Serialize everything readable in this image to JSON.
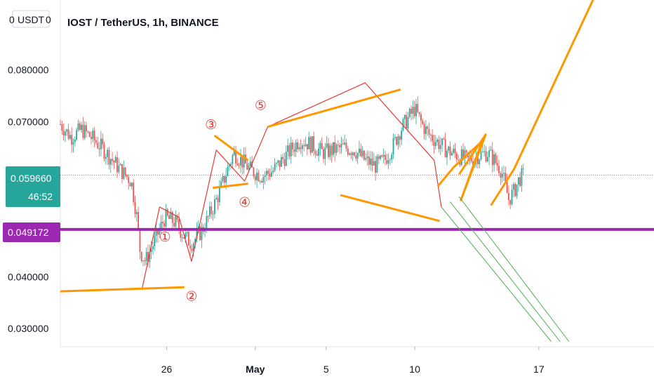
{
  "header": {
    "currency_badge": "USDT",
    "badge_left": "0",
    "badge_right": "0",
    "title": "IOST / TetherUS, 1h, BINANCE"
  },
  "colors": {
    "candle_up": "#26a69a",
    "candle_down": "#ef5350",
    "drawing_orange": "#ff9800",
    "wave_red": "#e53935",
    "support_purple": "#9c27b0",
    "price_tag_teal": "#26a69a",
    "projection_green": "#4caf50"
  },
  "price_tags": {
    "current_price": "0.059660",
    "countdown": "46:52",
    "support_price": "0.049172"
  },
  "wave_labels": [
    "①",
    "②",
    "③",
    "④",
    "⑤"
  ],
  "chart_data": {
    "type": "candlestick",
    "title": "IOST / TetherUS, 1h, BINANCE",
    "y_ticks": [
      {
        "value": 0.08,
        "label": "0.080000"
      },
      {
        "value": 0.07,
        "label": "0.070000"
      },
      {
        "value": 0.04,
        "label": "0.040000"
      },
      {
        "value": 0.03,
        "label": "0.030000"
      }
    ],
    "x_ticks": [
      {
        "day": 26,
        "label": "26"
      },
      {
        "day": 31,
        "label": "May"
      },
      {
        "day": 35,
        "label": "5"
      },
      {
        "day": 40,
        "label": "10"
      },
      {
        "day": 47,
        "label": "17"
      }
    ],
    "ylim": [
      0.0265,
      0.0935
    ],
    "xlim_days": [
      20.0,
      53.5
    ],
    "current_price": 0.05966,
    "support_level": 0.049172,
    "price_path": [
      [
        20.0,
        0.0695
      ],
      [
        20.6,
        0.067
      ],
      [
        21.2,
        0.0685
      ],
      [
        21.9,
        0.0665
      ],
      [
        22.6,
        0.064
      ],
      [
        23.3,
        0.061
      ],
      [
        24.0,
        0.0585
      ],
      [
        24.3,
        0.052
      ],
      [
        24.5,
        0.045
      ],
      [
        24.8,
        0.043
      ],
      [
        25.2,
        0.046
      ],
      [
        25.9,
        0.0515
      ],
      [
        26.5,
        0.0505
      ],
      [
        27.0,
        0.0478
      ],
      [
        27.4,
        0.0465
      ],
      [
        28.0,
        0.049
      ],
      [
        28.5,
        0.0525
      ],
      [
        29.0,
        0.0565
      ],
      [
        29.4,
        0.0605
      ],
      [
        29.8,
        0.064
      ],
      [
        30.2,
        0.0625
      ],
      [
        30.8,
        0.0605
      ],
      [
        31.4,
        0.0595
      ],
      [
        32.0,
        0.0605
      ],
      [
        32.5,
        0.0625
      ],
      [
        33.0,
        0.0645
      ],
      [
        33.5,
        0.0665
      ],
      [
        34.2,
        0.0655
      ],
      [
        34.8,
        0.064
      ],
      [
        35.4,
        0.0645
      ],
      [
        36.0,
        0.065
      ],
      [
        36.6,
        0.0645
      ],
      [
        37.2,
        0.0625
      ],
      [
        37.8,
        0.0615
      ],
      [
        38.3,
        0.0625
      ],
      [
        38.8,
        0.0655
      ],
      [
        39.2,
        0.0685
      ],
      [
        39.6,
        0.0705
      ],
      [
        40.0,
        0.0725
      ],
      [
        40.4,
        0.0695
      ],
      [
        40.8,
        0.0675
      ],
      [
        41.3,
        0.066
      ],
      [
        41.8,
        0.0645
      ],
      [
        42.4,
        0.0635
      ],
      [
        43.0,
        0.0625
      ],
      [
        43.6,
        0.0635
      ],
      [
        44.1,
        0.064
      ],
      [
        44.5,
        0.0625
      ],
      [
        44.9,
        0.0605
      ],
      [
        45.1,
        0.0575
      ],
      [
        45.3,
        0.055
      ],
      [
        45.6,
        0.0565
      ],
      [
        45.9,
        0.059
      ],
      [
        46.2,
        0.0598
      ]
    ],
    "drawings": {
      "wave_path": [
        [
          24.6,
          0.0375
        ],
        [
          25.6,
          0.0535
        ],
        [
          26.7,
          0.0515
        ],
        [
          27.4,
          0.043
        ],
        [
          28.8,
          0.0645
        ],
        [
          30.4,
          0.0585
        ],
        [
          31.7,
          0.069
        ],
        [
          37.2,
          0.0775
        ],
        [
          41.1,
          0.0625
        ],
        [
          41.5,
          0.0535
        ]
      ],
      "wave2_support": [
        [
          20.0,
          0.0372
        ],
        [
          27.0,
          0.038
        ]
      ],
      "wave4_triangle": [
        [
          [
            28.7,
            0.0673
          ],
          [
            30.6,
            0.0625
          ]
        ],
        [
          [
            28.6,
            0.0572
          ],
          [
            30.6,
            0.058
          ]
        ]
      ],
      "wave5_line": [
        [
          31.7,
          0.069
        ],
        [
          39.2,
          0.0762
        ]
      ],
      "wave5_lower": [
        [
          35.8,
          0.0558
        ],
        [
          41.4,
          0.0508
        ]
      ],
      "pennant": [
        [
          41.3,
          0.0575
        ],
        [
          42.2,
          0.0612
        ],
        [
          43.8,
          0.0662
        ],
        [
          42.6,
          0.0548
        ],
        [
          44.0,
          0.0675
        ],
        [
          42.5,
          0.0598
        ]
      ],
      "projection": [
        [
          44.3,
          0.0538
        ],
        [
          45.6,
          0.0608
        ],
        [
          50.6,
          0.0975
        ]
      ],
      "green_channel": [
        [
          [
            41.5,
            0.0535
          ],
          [
            47.7,
            0.0275
          ]
        ],
        [
          [
            42.0,
            0.0545
          ],
          [
            48.2,
            0.0275
          ]
        ],
        [
          [
            42.5,
            0.0555
          ],
          [
            48.7,
            0.0275
          ]
        ]
      ]
    }
  }
}
